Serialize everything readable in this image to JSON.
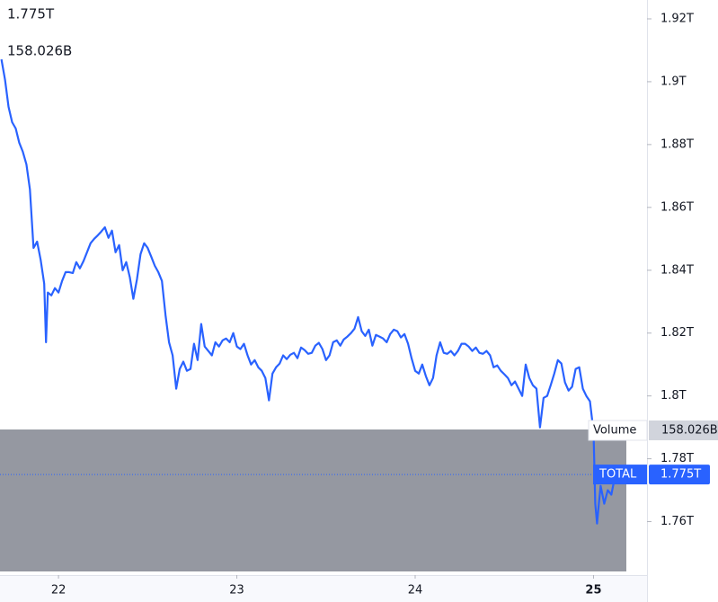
{
  "chart_data": {
    "type": "line",
    "series": [
      {
        "name": "TOTAL",
        "color": "#2962ff",
        "last_label": "1.775T",
        "x": [
          21.68,
          21.7,
          21.72,
          21.74,
          21.76,
          21.78,
          21.8,
          21.82,
          21.84,
          21.86,
          21.88,
          21.9,
          21.92,
          21.93,
          21.94,
          21.96,
          21.98,
          22.0,
          22.02,
          22.04,
          22.06,
          22.08,
          22.1,
          22.12,
          22.14,
          22.16,
          22.18,
          22.2,
          22.22,
          22.24,
          22.26,
          22.28,
          22.3,
          22.32,
          22.34,
          22.36,
          22.38,
          22.4,
          22.42,
          22.44,
          22.46,
          22.48,
          22.5,
          22.52,
          22.54,
          22.56,
          22.58,
          22.6,
          22.62,
          22.64,
          22.66,
          22.68,
          22.7,
          22.72,
          22.74,
          22.76,
          22.78,
          22.8,
          22.82,
          22.84,
          22.86,
          22.88,
          22.9,
          22.92,
          22.94,
          22.96,
          22.98,
          23.0,
          23.02,
          23.04,
          23.06,
          23.08,
          23.1,
          23.12,
          23.14,
          23.16,
          23.18,
          23.2,
          23.22,
          23.24,
          23.26,
          23.28,
          23.3,
          23.32,
          23.34,
          23.36,
          23.38,
          23.4,
          23.42,
          23.44,
          23.46,
          23.48,
          23.5,
          23.52,
          23.54,
          23.56,
          23.58,
          23.6,
          23.62,
          23.64,
          23.66,
          23.68,
          23.7,
          23.72,
          23.74,
          23.76,
          23.78,
          23.8,
          23.82,
          23.84,
          23.86,
          23.88,
          23.9,
          23.92,
          23.94,
          23.96,
          23.98,
          24.0,
          24.02,
          24.04,
          24.06,
          24.08,
          24.1,
          24.12,
          24.14,
          24.16,
          24.18,
          24.2,
          24.22,
          24.24,
          24.26,
          24.28,
          24.3,
          24.32,
          24.34,
          24.36,
          24.38,
          24.4,
          24.42,
          24.44,
          24.46,
          24.48,
          24.5,
          24.52,
          24.54,
          24.56,
          24.58,
          24.6,
          24.62,
          24.64,
          24.66,
          24.68,
          24.7,
          24.72,
          24.74,
          24.76,
          24.78,
          24.8,
          24.82,
          24.84,
          24.86,
          24.88,
          24.9,
          24.92,
          24.94,
          24.96,
          24.98,
          25.0,
          25.01,
          25.02,
          25.03,
          25.04,
          25.06,
          25.08,
          25.1,
          25.12,
          25.14,
          25.16
        ],
        "values": [
          1.9071,
          1.9006,
          1.892,
          1.8871,
          1.8851,
          1.8806,
          1.8777,
          1.8737,
          1.8657,
          1.8471,
          1.8491,
          1.8434,
          1.8357,
          1.8171,
          1.8329,
          1.832,
          1.8343,
          1.8329,
          1.8366,
          1.8394,
          1.8394,
          1.8391,
          1.8426,
          1.8406,
          1.8429,
          1.8457,
          1.8486,
          1.85,
          1.8511,
          1.8523,
          1.8537,
          1.8503,
          1.8526,
          1.8457,
          1.848,
          1.84,
          1.8426,
          1.8377,
          1.8309,
          1.8371,
          1.8451,
          1.8486,
          1.8471,
          1.8443,
          1.8414,
          1.8394,
          1.8366,
          1.8257,
          1.8171,
          1.8129,
          1.8023,
          1.8086,
          1.8109,
          1.808,
          1.8086,
          1.8166,
          1.8114,
          1.8229,
          1.8157,
          1.8143,
          1.8129,
          1.8171,
          1.8157,
          1.8177,
          1.8183,
          1.8171,
          1.82,
          1.8157,
          1.8149,
          1.8166,
          1.8129,
          1.81,
          1.8114,
          1.8091,
          1.808,
          1.8057,
          1.7986,
          1.8071,
          1.8091,
          1.8103,
          1.8129,
          1.8117,
          1.8131,
          1.8137,
          1.812,
          1.8154,
          1.8146,
          1.8134,
          1.8137,
          1.816,
          1.8169,
          1.8149,
          1.8114,
          1.8129,
          1.8171,
          1.8177,
          1.816,
          1.818,
          1.8189,
          1.82,
          1.8214,
          1.8251,
          1.8206,
          1.8191,
          1.8211,
          1.816,
          1.8194,
          1.8189,
          1.8183,
          1.8171,
          1.8197,
          1.8211,
          1.8206,
          1.8186,
          1.8197,
          1.8166,
          1.812,
          1.808,
          1.8071,
          1.81,
          1.8063,
          1.8034,
          1.8057,
          1.8129,
          1.8171,
          1.8137,
          1.8134,
          1.8143,
          1.8129,
          1.8143,
          1.8166,
          1.8166,
          1.8157,
          1.8143,
          1.8154,
          1.8137,
          1.8134,
          1.8143,
          1.8129,
          1.8091,
          1.8097,
          1.808,
          1.8069,
          1.8057,
          1.8034,
          1.8046,
          1.8023,
          1.8,
          1.81,
          1.8057,
          1.8034,
          1.8023,
          1.79,
          1.7994,
          1.8,
          1.8034,
          1.8071,
          1.8114,
          1.8103,
          1.8043,
          1.8017,
          1.8029,
          1.8086,
          1.8091,
          1.8023,
          1.8,
          1.7983,
          1.7886,
          1.7657,
          1.7594,
          1.7657,
          1.7714,
          1.7657,
          1.77,
          1.7686,
          1.7743,
          1.7777,
          1.775
        ]
      }
    ],
    "volume": {
      "name": "Volume",
      "color": "#9598a1",
      "values": [
        158.026
      ],
      "value_labels": [
        "158.026B"
      ]
    },
    "xlim": [
      21.672,
      25.3
    ],
    "xticks": [
      22,
      23,
      24,
      25
    ],
    "ylim": [
      1.743,
      1.926
    ],
    "yticks": [
      {
        "value": 1.76,
        "label": "1.76T"
      },
      {
        "value": 1.78,
        "label": "1.78T"
      },
      {
        "value": 1.8,
        "label": "1.8T"
      },
      {
        "value": 1.82,
        "label": "1.82T"
      },
      {
        "value": 1.84,
        "label": "1.84T"
      },
      {
        "value": 1.86,
        "label": "1.86T"
      },
      {
        "value": 1.88,
        "label": "1.88T"
      },
      {
        "value": 1.9,
        "label": "1.9T"
      },
      {
        "value": 1.92,
        "label": "1.92T"
      }
    ]
  }
}
